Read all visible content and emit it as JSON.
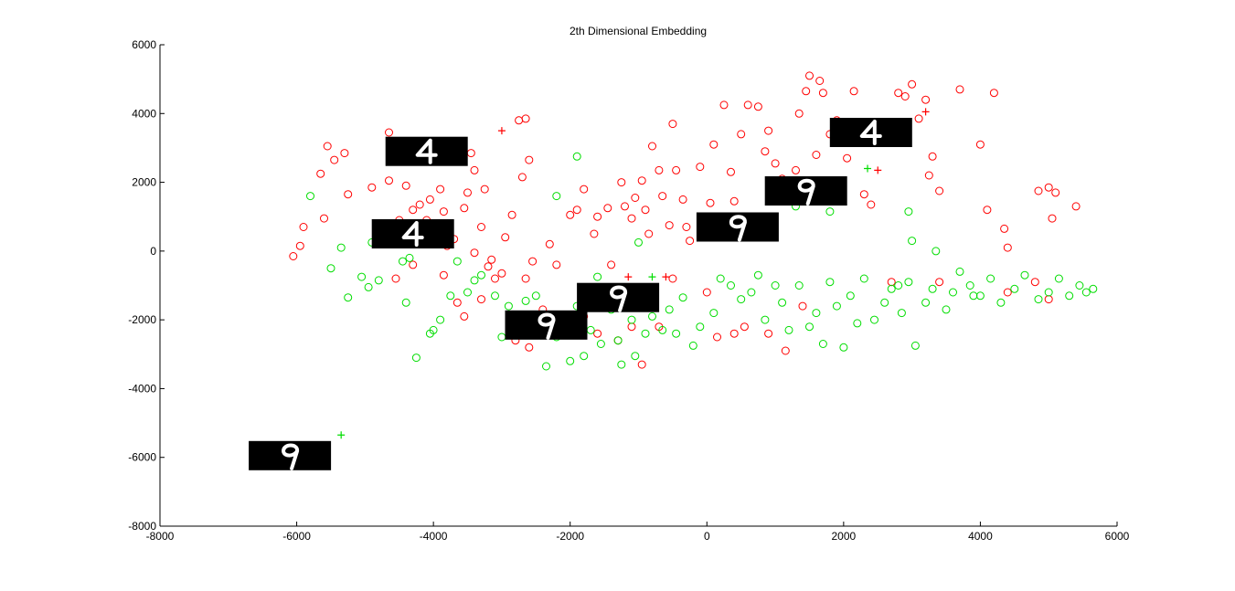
{
  "chart_data": {
    "type": "scatter",
    "title": "2th Dimensional Embedding",
    "xlabel": "",
    "ylabel": "",
    "xlim": [
      -8000,
      6000
    ],
    "ylim": [
      -8000,
      6000
    ],
    "xticks": [
      "-8000",
      "-6000",
      "-4000",
      "-2000",
      "0",
      "2000",
      "4000",
      "6000"
    ],
    "yticks": [
      "6000",
      "4000",
      "2000",
      "0",
      "-2000",
      "-4000",
      "-6000",
      "-8000"
    ],
    "grid": false,
    "legend": "none",
    "series": [
      {
        "marker": "circle",
        "color": "#ff0000",
        "points": [
          [
            -6050,
            -150
          ],
          [
            -5950,
            150
          ],
          [
            -5900,
            700
          ],
          [
            -5650,
            2250
          ],
          [
            -5600,
            950
          ],
          [
            -5550,
            3050
          ],
          [
            -5450,
            2650
          ],
          [
            -5300,
            2850
          ],
          [
            -5250,
            1650
          ],
          [
            -4900,
            1850
          ],
          [
            -4650,
            3450
          ],
          [
            -4600,
            2600
          ],
          [
            -4650,
            2050
          ],
          [
            -4500,
            900
          ],
          [
            -4400,
            1900
          ],
          [
            -4300,
            1200
          ],
          [
            -4200,
            1350
          ],
          [
            -4100,
            900
          ],
          [
            -4050,
            1500
          ],
          [
            -3900,
            1800
          ],
          [
            -3850,
            1150
          ],
          [
            -3800,
            150
          ],
          [
            -3700,
            350
          ],
          [
            -3550,
            1250
          ],
          [
            -3500,
            1700
          ],
          [
            -3400,
            2350
          ],
          [
            -3300,
            700
          ],
          [
            -3250,
            1800
          ],
          [
            -3600,
            2700
          ],
          [
            -3450,
            2850
          ],
          [
            -3400,
            -50
          ],
          [
            -3200,
            -450
          ],
          [
            -3150,
            -250
          ],
          [
            -3000,
            -650
          ],
          [
            -2950,
            400
          ],
          [
            -2850,
            1050
          ],
          [
            -2700,
            2150
          ],
          [
            -2750,
            3800
          ],
          [
            -2650,
            3850
          ],
          [
            -2600,
            2650
          ],
          [
            -2650,
            -800
          ],
          [
            -2550,
            -300
          ],
          [
            -2500,
            -1900
          ],
          [
            -2300,
            200
          ],
          [
            -2200,
            -400
          ],
          [
            -2000,
            1050
          ],
          [
            -1900,
            1200
          ],
          [
            -1800,
            1800
          ],
          [
            -1650,
            500
          ],
          [
            -1600,
            1000
          ],
          [
            -1450,
            1250
          ],
          [
            -1400,
            -400
          ],
          [
            -1250,
            2000
          ],
          [
            -1200,
            1300
          ],
          [
            -1100,
            950
          ],
          [
            -1050,
            1550
          ],
          [
            -950,
            2050
          ],
          [
            -900,
            1200
          ],
          [
            -850,
            500
          ],
          [
            -800,
            3050
          ],
          [
            -700,
            2350
          ],
          [
            -650,
            1600
          ],
          [
            -550,
            750
          ],
          [
            -500,
            3700
          ],
          [
            -450,
            2350
          ],
          [
            -350,
            1500
          ],
          [
            -300,
            700
          ],
          [
            -250,
            300
          ],
          [
            -100,
            2450
          ],
          [
            50,
            1400
          ],
          [
            100,
            3100
          ],
          [
            250,
            4250
          ],
          [
            350,
            2300
          ],
          [
            400,
            1450
          ],
          [
            500,
            3400
          ],
          [
            600,
            4250
          ],
          [
            750,
            4200
          ],
          [
            850,
            2900
          ],
          [
            900,
            3500
          ],
          [
            1000,
            2550
          ],
          [
            1100,
            2100
          ],
          [
            1200,
            1650
          ],
          [
            1300,
            2350
          ],
          [
            1350,
            4000
          ],
          [
            1450,
            4650
          ],
          [
            1500,
            5100
          ],
          [
            1600,
            2800
          ],
          [
            1650,
            4950
          ],
          [
            1700,
            4600
          ],
          [
            1800,
            3400
          ],
          [
            1900,
            3800
          ],
          [
            2050,
            2700
          ],
          [
            2150,
            4650
          ],
          [
            2300,
            1650
          ],
          [
            2400,
            1350
          ],
          [
            2800,
            4600
          ],
          [
            2900,
            4500
          ],
          [
            3000,
            4850
          ],
          [
            3100,
            3850
          ],
          [
            3200,
            4400
          ],
          [
            3250,
            2200
          ],
          [
            3300,
            2750
          ],
          [
            3400,
            1750
          ],
          [
            3700,
            4700
          ],
          [
            4000,
            3100
          ],
          [
            4200,
            4600
          ],
          [
            4100,
            1200
          ],
          [
            4350,
            650
          ],
          [
            4400,
            100
          ],
          [
            4850,
            1750
          ],
          [
            5000,
            1850
          ],
          [
            5100,
            1700
          ],
          [
            5400,
            1300
          ],
          [
            5050,
            950
          ],
          [
            -3550,
            -1900
          ],
          [
            -3650,
            -1500
          ],
          [
            -3300,
            -1400
          ],
          [
            -3100,
            -800
          ],
          [
            -2800,
            -2600
          ],
          [
            -2600,
            -2800
          ],
          [
            -2400,
            -1700
          ],
          [
            -1800,
            -1900
          ],
          [
            -1600,
            -2400
          ],
          [
            -1300,
            -2600
          ],
          [
            -1100,
            -2200
          ],
          [
            -950,
            -3300
          ],
          [
            -800,
            -1500
          ],
          [
            -700,
            -2200
          ],
          [
            -500,
            -800
          ],
          [
            0,
            -1200
          ],
          [
            150,
            -2500
          ],
          [
            400,
            -2400
          ],
          [
            550,
            -2200
          ],
          [
            900,
            -2400
          ],
          [
            1150,
            -2900
          ],
          [
            1400,
            -1600
          ],
          [
            2700,
            -900
          ],
          [
            3400,
            -900
          ],
          [
            4400,
            -1200
          ],
          [
            4800,
            -900
          ],
          [
            5000,
            -1400
          ],
          [
            -4550,
            -800
          ],
          [
            -4300,
            -400
          ],
          [
            -3850,
            -700
          ]
        ]
      },
      {
        "marker": "plus",
        "color": "#ff0000",
        "points": [
          [
            -3000,
            3500
          ],
          [
            3200,
            4050
          ],
          [
            2500,
            2350
          ],
          [
            -1150,
            -750
          ],
          [
            -600,
            -750
          ]
        ]
      },
      {
        "marker": "circle",
        "color": "#00dd00",
        "points": [
          [
            -5800,
            1600
          ],
          [
            -5500,
            -500
          ],
          [
            -5350,
            100
          ],
          [
            -5250,
            -1350
          ],
          [
            -5050,
            -750
          ],
          [
            -4950,
            -1050
          ],
          [
            -4900,
            250
          ],
          [
            -4800,
            -850
          ],
          [
            -4750,
            400
          ],
          [
            -4400,
            -1500
          ],
          [
            -4250,
            -3100
          ],
          [
            -4050,
            -2400
          ],
          [
            -4000,
            -2300
          ],
          [
            -3900,
            -2000
          ],
          [
            -3750,
            -1300
          ],
          [
            -3650,
            -300
          ],
          [
            -3500,
            -1200
          ],
          [
            -3400,
            -850
          ],
          [
            -3300,
            -700
          ],
          [
            -3100,
            -1300
          ],
          [
            -3000,
            -2500
          ],
          [
            -2900,
            -1600
          ],
          [
            -2700,
            -2300
          ],
          [
            -2500,
            -1300
          ],
          [
            -2350,
            -3350
          ],
          [
            -2200,
            -2500
          ],
          [
            -2100,
            -2100
          ],
          [
            -2000,
            -3200
          ],
          [
            -1900,
            -1600
          ],
          [
            -1800,
            -3050
          ],
          [
            -1700,
            -2300
          ],
          [
            -1550,
            -2700
          ],
          [
            -1400,
            -1700
          ],
          [
            -1300,
            -2600
          ],
          [
            -1250,
            -3300
          ],
          [
            -1100,
            -2000
          ],
          [
            -1050,
            -3050
          ],
          [
            -900,
            -2400
          ],
          [
            -800,
            -1900
          ],
          [
            -650,
            -2300
          ],
          [
            -550,
            -1700
          ],
          [
            -450,
            -2400
          ],
          [
            -350,
            -1350
          ],
          [
            -200,
            -2750
          ],
          [
            -100,
            -2200
          ],
          [
            100,
            -1800
          ],
          [
            200,
            -800
          ],
          [
            350,
            -1000
          ],
          [
            500,
            -1400
          ],
          [
            650,
            -1200
          ],
          [
            750,
            -700
          ],
          [
            850,
            -2000
          ],
          [
            1000,
            -1000
          ],
          [
            1100,
            -1500
          ],
          [
            1200,
            -2300
          ],
          [
            1350,
            -1000
          ],
          [
            1500,
            -2200
          ],
          [
            1600,
            -1800
          ],
          [
            1700,
            -2700
          ],
          [
            1800,
            -900
          ],
          [
            1900,
            -1600
          ],
          [
            2000,
            -2800
          ],
          [
            2100,
            -1300
          ],
          [
            2200,
            -2100
          ],
          [
            2300,
            -800
          ],
          [
            2450,
            -2000
          ],
          [
            2600,
            -1500
          ],
          [
            2700,
            -1100
          ],
          [
            2850,
            -1800
          ],
          [
            2950,
            -900
          ],
          [
            3050,
            -2750
          ],
          [
            3200,
            -1500
          ],
          [
            3300,
            -1100
          ],
          [
            3500,
            -1700
          ],
          [
            3600,
            -1200
          ],
          [
            3700,
            -600
          ],
          [
            3850,
            -1000
          ],
          [
            4000,
            -1300
          ],
          [
            4150,
            -800
          ],
          [
            4300,
            -1500
          ],
          [
            4500,
            -1100
          ],
          [
            4650,
            -700
          ],
          [
            4850,
            -1400
          ],
          [
            5000,
            -1200
          ],
          [
            5150,
            -800
          ],
          [
            5300,
            -1300
          ],
          [
            5450,
            -1000
          ],
          [
            5550,
            -1200
          ],
          [
            5650,
            -1100
          ],
          [
            -2200,
            1600
          ],
          [
            -1900,
            2750
          ],
          [
            -1000,
            250
          ],
          [
            1300,
            1300
          ],
          [
            1800,
            1150
          ],
          [
            2950,
            1150
          ],
          [
            3000,
            300
          ],
          [
            3350,
            0
          ],
          [
            3900,
            -1300
          ],
          [
            2800,
            -1000
          ],
          [
            -4450,
            -300
          ],
          [
            -4350,
            -200
          ],
          [
            -1600,
            -750
          ],
          [
            -2650,
            -1450
          ]
        ]
      },
      {
        "marker": "plus",
        "color": "#00dd00",
        "points": [
          [
            -5350,
            -5350
          ],
          [
            2350,
            2400
          ],
          [
            -800,
            -750
          ]
        ]
      }
    ],
    "digit_images": [
      {
        "digit": "4",
        "x": -4100,
        "y": 2900
      },
      {
        "digit": "4",
        "x": -4300,
        "y": 500
      },
      {
        "digit": "9",
        "x": 450,
        "y": 700
      },
      {
        "digit": "9",
        "x": 1450,
        "y": 1750
      },
      {
        "digit": "4",
        "x": 2400,
        "y": 3450
      },
      {
        "digit": "9",
        "x": -1300,
        "y": -1350
      },
      {
        "digit": "9",
        "x": -2350,
        "y": -2150
      },
      {
        "digit": "9",
        "x": -6100,
        "y": -5950
      }
    ]
  }
}
